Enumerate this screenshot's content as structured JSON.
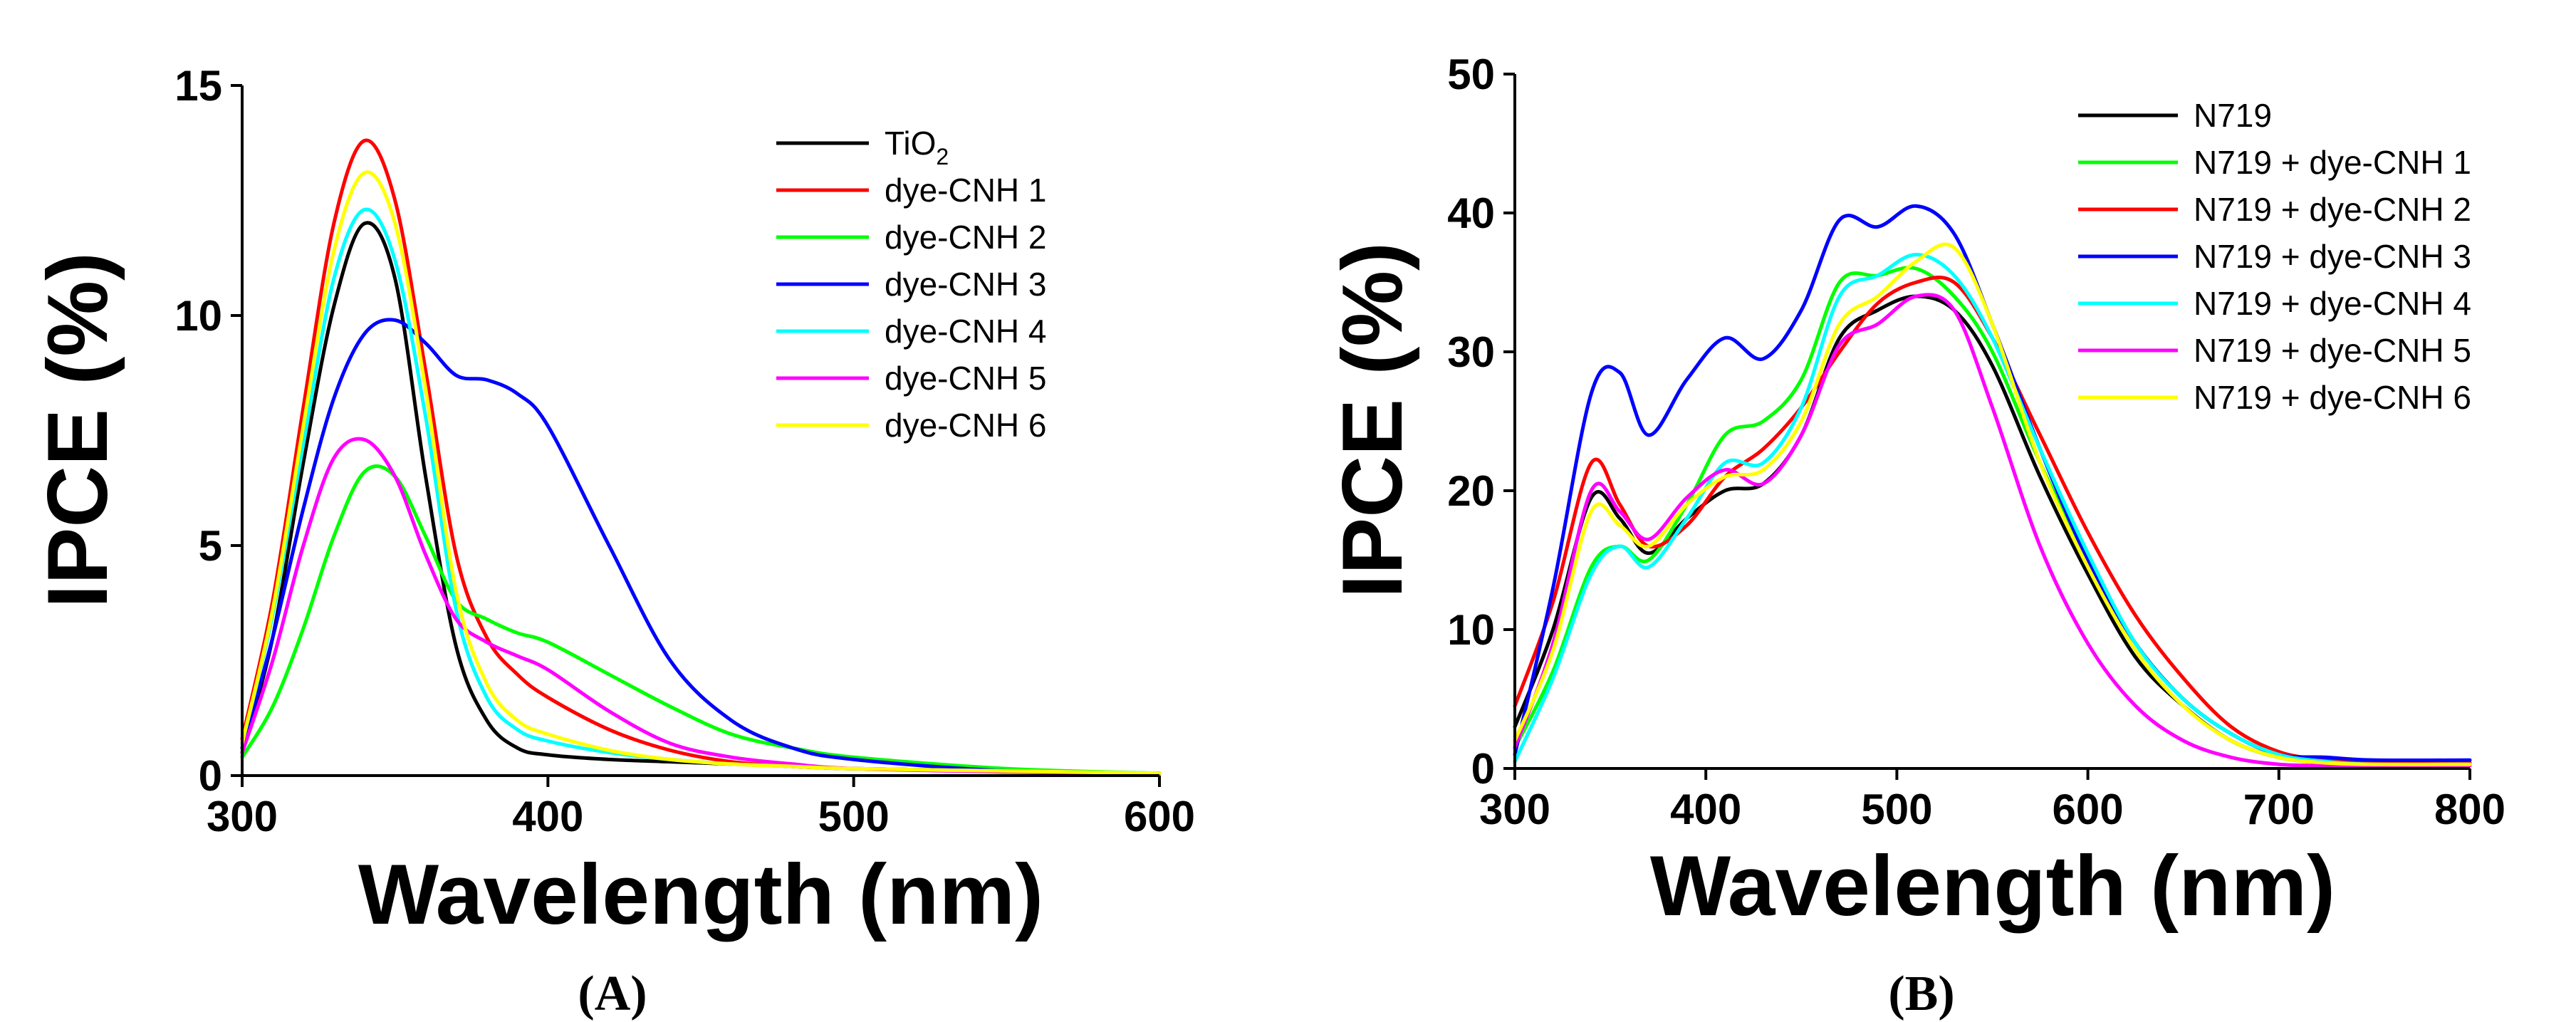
{
  "chart_data": [
    {
      "type": "line",
      "panel_label": "(A)",
      "xlabel": "Wavelength (nm)",
      "ylabel": "IPCE (%)",
      "xlim": [
        300,
        600
      ],
      "ylim": [
        0,
        15
      ],
      "xticks": [
        300,
        400,
        500,
        600
      ],
      "yticks": [
        0,
        5,
        10,
        15
      ],
      "legend_position": "top-right",
      "x": [
        300,
        310,
        320,
        330,
        340,
        350,
        360,
        370,
        380,
        390,
        400,
        420,
        440,
        460,
        480,
        500,
        550,
        600
      ],
      "series": [
        {
          "name": "TiO",
          "subscript": "2",
          "color": "#000000",
          "values": [
            0.5,
            3.0,
            6.8,
            10.2,
            12.0,
            10.8,
            6.5,
            2.8,
            1.2,
            0.6,
            0.45,
            0.35,
            0.3,
            0.25,
            0.2,
            0.15,
            0.1,
            0.05
          ]
        },
        {
          "name": "dye-CNH 1",
          "color": "#ff0000",
          "values": [
            0.8,
            3.8,
            8.0,
            12.0,
            13.8,
            12.5,
            8.8,
            4.8,
            3.0,
            2.2,
            1.7,
            1.0,
            0.55,
            0.3,
            0.2,
            0.15,
            0.1,
            0.05
          ]
        },
        {
          "name": "dye-CNH 2",
          "color": "#00ff00",
          "values": [
            0.4,
            1.5,
            3.2,
            5.2,
            6.6,
            6.5,
            5.2,
            3.8,
            3.4,
            3.1,
            2.9,
            2.2,
            1.5,
            0.9,
            0.6,
            0.4,
            0.15,
            0.05
          ]
        },
        {
          "name": "dye-CNH 3",
          "color": "#0000ff",
          "values": [
            0.6,
            3.0,
            5.8,
            8.2,
            9.6,
            9.9,
            9.4,
            8.7,
            8.6,
            8.3,
            7.6,
            5.0,
            2.5,
            1.2,
            0.6,
            0.35,
            0.1,
            0.05
          ]
        },
        {
          "name": "dye-CNH 4",
          "color": "#00ffff",
          "values": [
            0.7,
            3.5,
            7.2,
            10.8,
            12.3,
            11.2,
            7.8,
            3.6,
            1.7,
            1.0,
            0.75,
            0.5,
            0.35,
            0.25,
            0.2,
            0.15,
            0.1,
            0.05
          ]
        },
        {
          "name": "dye-CNH 5",
          "color": "#ff00ff",
          "values": [
            0.5,
            2.5,
            5.0,
            6.9,
            7.3,
            6.5,
            4.8,
            3.4,
            2.9,
            2.6,
            2.3,
            1.4,
            0.7,
            0.4,
            0.25,
            0.15,
            0.08,
            0.04
          ]
        },
        {
          "name": "dye-CNH 6",
          "color": "#ffff00",
          "values": [
            0.7,
            3.6,
            7.6,
            11.4,
            13.1,
            12.0,
            8.4,
            4.0,
            2.0,
            1.2,
            0.9,
            0.55,
            0.35,
            0.25,
            0.2,
            0.15,
            0.1,
            0.05
          ]
        }
      ]
    },
    {
      "type": "line",
      "panel_label": "(B)",
      "xlabel": "Wavelength (nm)",
      "ylabel": "IPCE (%)",
      "xlim": [
        300,
        800
      ],
      "ylim": [
        0,
        50
      ],
      "xticks": [
        300,
        400,
        500,
        600,
        700,
        800
      ],
      "yticks": [
        0,
        10,
        20,
        30,
        40,
        50
      ],
      "legend_position": "top-right",
      "x": [
        300,
        320,
        340,
        355,
        370,
        390,
        410,
        430,
        450,
        470,
        490,
        510,
        530,
        550,
        575,
        600,
        625,
        650,
        675,
        700,
        725,
        750,
        800
      ],
      "series": [
        {
          "name": "N719",
          "color": "#000000",
          "values": [
            3.0,
            10.0,
            19.5,
            18.0,
            15.5,
            18.0,
            20.0,
            20.5,
            24.0,
            31.0,
            33.0,
            34.0,
            33.0,
            29.0,
            21.0,
            14.0,
            8.0,
            4.5,
            2.0,
            0.8,
            0.4,
            0.3,
            0.3
          ]
        },
        {
          "name": "N719 + dye-CNH 1",
          "color": "#00ff00",
          "values": [
            1.5,
            7.0,
            14.5,
            16.0,
            15.0,
            19.0,
            24.0,
            25.0,
            28.0,
            35.0,
            35.5,
            36.0,
            34.0,
            30.0,
            22.0,
            15.0,
            9.0,
            5.0,
            2.5,
            1.0,
            0.5,
            0.3,
            0.3
          ]
        },
        {
          "name": "N719 + dye-CNH 2",
          "color": "#ff0000",
          "values": [
            4.5,
            12.0,
            22.0,
            19.0,
            16.0,
            17.5,
            21.0,
            23.0,
            26.0,
            30.0,
            33.5,
            35.0,
            35.0,
            31.0,
            24.0,
            17.0,
            11.0,
            6.5,
            3.0,
            1.2,
            0.6,
            0.4,
            0.4
          ]
        },
        {
          "name": "N719 + dye-CNH 3",
          "color": "#0000ff",
          "values": [
            1.0,
            13.0,
            27.0,
            28.5,
            24.0,
            28.0,
            31.0,
            29.5,
            33.0,
            39.5,
            39.0,
            40.5,
            38.5,
            32.0,
            23.0,
            15.0,
            9.0,
            5.0,
            2.5,
            1.0,
            0.8,
            0.6,
            0.6
          ]
        },
        {
          "name": "N719 + dye-CNH 4",
          "color": "#00ffff",
          "values": [
            0.5,
            6.5,
            14.0,
            16.0,
            14.5,
            18.0,
            22.0,
            22.0,
            26.0,
            34.0,
            35.5,
            37.0,
            35.5,
            31.0,
            23.0,
            15.5,
            9.0,
            5.0,
            2.5,
            1.0,
            0.5,
            0.3,
            0.3
          ]
        },
        {
          "name": "N719 + dye-CNH 5",
          "color": "#ff00ff",
          "values": [
            1.5,
            9.0,
            20.0,
            18.5,
            16.5,
            19.5,
            21.5,
            20.5,
            24.0,
            30.5,
            32.0,
            34.0,
            33.0,
            26.0,
            16.0,
            9.0,
            4.5,
            2.0,
            0.8,
            0.3,
            0.2,
            0.2,
            0.2
          ]
        },
        {
          "name": "N719 + dye-CNH 6",
          "color": "#ffff00",
          "values": [
            2.0,
            8.5,
            18.5,
            17.5,
            16.0,
            19.0,
            21.0,
            21.5,
            25.0,
            32.0,
            34.0,
            36.5,
            37.5,
            32.0,
            22.0,
            14.5,
            8.5,
            4.5,
            2.0,
            0.8,
            0.4,
            0.3,
            0.3
          ]
        }
      ]
    }
  ]
}
